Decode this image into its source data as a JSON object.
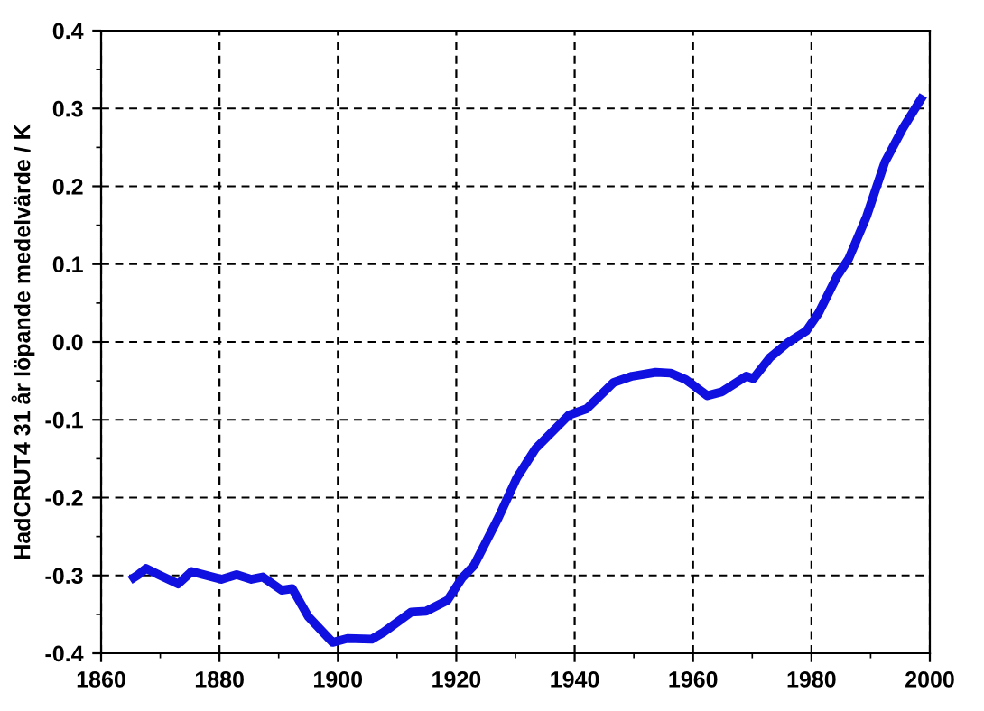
{
  "chart_data": {
    "type": "line",
    "ylabel": "HadCRUT4 31 år löpande medelvärde / K",
    "x": [
      1865.5,
      1866.3,
      1867.6,
      1869.7,
      1873,
      1875.3,
      1880.3,
      1882.9,
      1885.4,
      1887.3,
      1890.5,
      1892.3,
      1895,
      1899.1,
      1901.6,
      1905.7,
      1907.7,
      1912.4,
      1914.9,
      1918.5,
      1921,
      1923,
      1927.1,
      1930.2,
      1933.4,
      1939,
      1942,
      1946.6,
      1949.7,
      1953.7,
      1956.2,
      1958.7,
      1962.4,
      1964.9,
      1969,
      1970.2,
      1973,
      1976,
      1979.1,
      1981.2,
      1984.3,
      1986.3,
      1989.3,
      1992.4,
      1995.4,
      1998.5
    ],
    "series": [
      {
        "color": "#1010e0",
        "values": [
          -0.303,
          -0.299,
          -0.291,
          -0.299,
          -0.311,
          -0.295,
          -0.305,
          -0.299,
          -0.305,
          -0.302,
          -0.319,
          -0.317,
          -0.353,
          -0.386,
          -0.381,
          -0.382,
          -0.373,
          -0.347,
          -0.346,
          -0.332,
          -0.303,
          -0.287,
          -0.226,
          -0.175,
          -0.137,
          -0.094,
          -0.086,
          -0.052,
          -0.044,
          -0.039,
          -0.04,
          -0.048,
          -0.069,
          -0.064,
          -0.044,
          -0.047,
          -0.02,
          -0.001,
          0.014,
          0.037,
          0.084,
          0.107,
          0.161,
          0.231,
          0.274,
          0.312
        ]
      }
    ],
    "xlim": [
      1860,
      2000
    ],
    "xticks": [
      1860,
      1880,
      1900,
      1920,
      1940,
      1960,
      1980,
      2000
    ],
    "ylim": [
      -0.4,
      0.4
    ],
    "yticks": [
      -0.4,
      -0.3,
      -0.2,
      -0.1,
      {
        "value": 0.0,
        "label": "0.0"
      },
      0.1,
      0.2,
      0.3,
      0.4
    ],
    "grid": true,
    "marker": "none",
    "line_style": "solid",
    "legend": false
  }
}
